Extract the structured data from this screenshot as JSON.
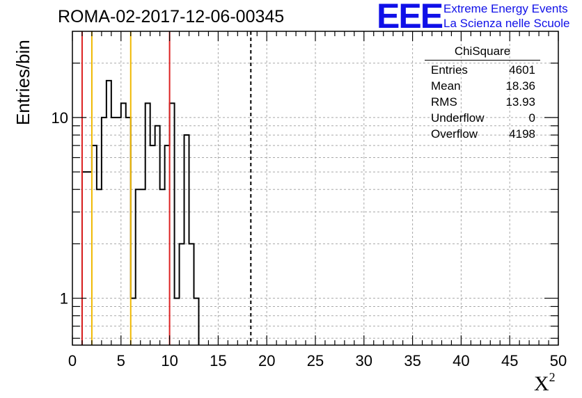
{
  "title": "ROMA-02-2017-12-06-00345",
  "logo": {
    "mark": "EEE",
    "line1": "Extreme Energy Events",
    "line2": "La Scienza nelle Scuole"
  },
  "stats": {
    "name": "ChiSquare",
    "rows": [
      {
        "label": "Entries",
        "value": "4601"
      },
      {
        "label": "Mean",
        "value": "18.36"
      },
      {
        "label": "RMS",
        "value": "13.93"
      },
      {
        "label": "Underflow",
        "value": "0"
      },
      {
        "label": "Overflow",
        "value": "4198"
      }
    ]
  },
  "chart_data": {
    "type": "histogram",
    "xlabel": "X",
    "xlabel_sup": "2",
    "ylabel": "Entries/bin",
    "xlim": [
      0,
      50
    ],
    "ylim": [
      0.55,
      30
    ],
    "yscale": "log",
    "bin_width": 0.5,
    "x_ticks": [
      0,
      5,
      10,
      15,
      20,
      25,
      30,
      35,
      40,
      45,
      50
    ],
    "y_ticks": [
      1,
      10
    ],
    "grid": true,
    "values": [
      0,
      0,
      5,
      5,
      7,
      4,
      10,
      16,
      10,
      10,
      12,
      10,
      1,
      4,
      4,
      12,
      7,
      9,
      4,
      7,
      12,
      1,
      2,
      8,
      2,
      1,
      0,
      0,
      0,
      0,
      0,
      0,
      0,
      0,
      0,
      0,
      0,
      0,
      0,
      0,
      0,
      0,
      0,
      0,
      0,
      0,
      0,
      0,
      0,
      0,
      0,
      0,
      0,
      0,
      0,
      0,
      0,
      0,
      0,
      0,
      0,
      0,
      0,
      0,
      0,
      0,
      0,
      0,
      0,
      0,
      0,
      0,
      0,
      0,
      0,
      0,
      0,
      0,
      0,
      0,
      0,
      0,
      0,
      0,
      0,
      0,
      0,
      0,
      0,
      0,
      0,
      0,
      0,
      0,
      0,
      0,
      0,
      0,
      0,
      0
    ],
    "vertical_lines": [
      {
        "x": 1,
        "color": "#dd2222",
        "style": "solid"
      },
      {
        "x": 2,
        "color": "#f0b800",
        "style": "solid"
      },
      {
        "x": 6,
        "color": "#f0b800",
        "style": "solid"
      },
      {
        "x": 10,
        "color": "#dd2222",
        "style": "solid"
      },
      {
        "x": 18.36,
        "color": "#000000",
        "style": "dashed"
      }
    ]
  }
}
